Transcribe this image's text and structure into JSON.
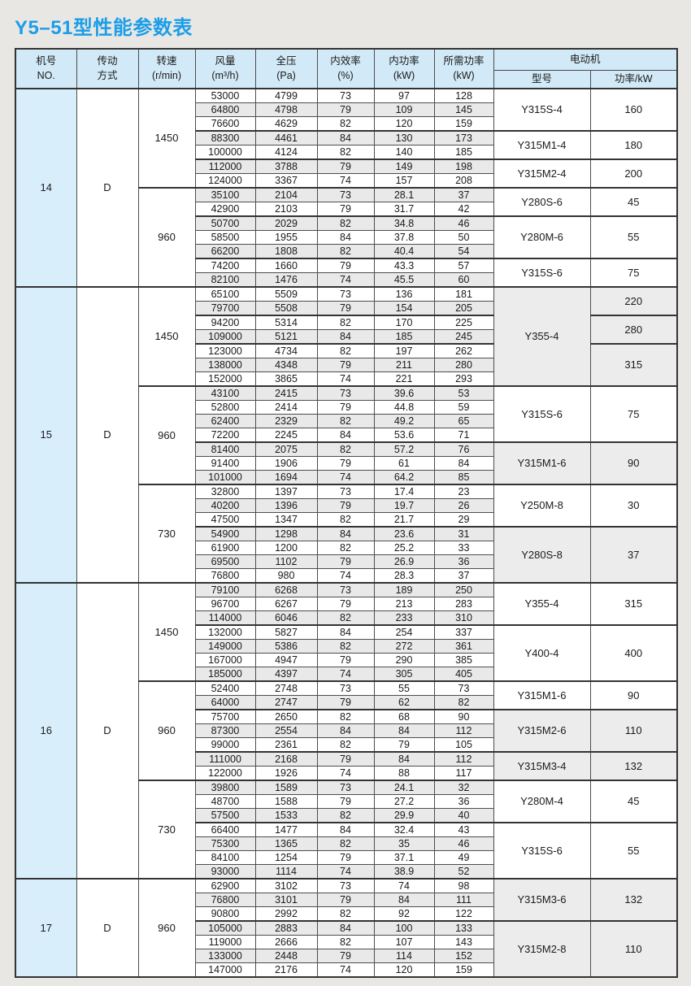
{
  "page": {
    "title": "Y5–51型性能参数表",
    "colors": {
      "accent": "#1b9ee8",
      "header_bg": "#d2e9f7",
      "machine_no_bg": "#d9eefb",
      "stripe_bg": "#e9e9e9",
      "shaded_cell_bg": "#ececec",
      "border": "#4d4d4d",
      "border_thick": "#333333",
      "page_bg": "#e9e7e4"
    }
  },
  "table": {
    "header": {
      "columns": [
        "机号\nNO.",
        "传动\n方式",
        "转速\n(r/min)",
        "风量\n(m³/h)",
        "全压\n(Pa)",
        "内效率\n(%)",
        "内功率\n(kW)",
        "所需功率\n(kW)"
      ],
      "motor_group_label": "电动机",
      "motor_sub_columns": [
        "型号",
        "功率/kW"
      ]
    },
    "sections": [
      {
        "no": "14",
        "drive": "D",
        "speed_groups": [
          {
            "speed": "1450",
            "rows": [
              [
                "53000",
                "4799",
                "73",
                "97",
                "128"
              ],
              [
                "64800",
                "4798",
                "79",
                "109",
                "145"
              ],
              [
                "76600",
                "4629",
                "82",
                "120",
                "159"
              ],
              [
                "88300",
                "4461",
                "84",
                "130",
                "173"
              ],
              [
                "100000",
                "4124",
                "82",
                "140",
                "185"
              ],
              [
                "112000",
                "3788",
                "79",
                "149",
                "198"
              ],
              [
                "124000",
                "3367",
                "74",
                "157",
                "208"
              ]
            ]
          },
          {
            "speed": "960",
            "rows": [
              [
                "35100",
                "2104",
                "73",
                "28.1",
                "37"
              ],
              [
                "42900",
                "2103",
                "79",
                "31.7",
                "42"
              ],
              [
                "50700",
                "2029",
                "82",
                "34.8",
                "46"
              ],
              [
                "58500",
                "1955",
                "84",
                "37.8",
                "50"
              ],
              [
                "66200",
                "1808",
                "82",
                "40.4",
                "54"
              ],
              [
                "74200",
                "1660",
                "79",
                "43.3",
                "57"
              ],
              [
                "82100",
                "1476",
                "74",
                "45.5",
                "60"
              ]
            ]
          }
        ],
        "model_groups": [
          {
            "model": "Y315S-4",
            "span": 3,
            "shaded": false
          },
          {
            "model": "Y315M1-4",
            "span": 2,
            "shaded": false
          },
          {
            "model": "Y315M2-4",
            "span": 2,
            "shaded": false
          },
          {
            "model": "Y280S-6",
            "span": 2,
            "shaded": false
          },
          {
            "model": "Y280M-6",
            "span": 3,
            "shaded": false
          },
          {
            "model": "Y315S-6",
            "span": 2,
            "shaded": false
          }
        ],
        "power_groups": [
          {
            "power": "160",
            "span": 3,
            "shaded": false
          },
          {
            "power": "180",
            "span": 2,
            "shaded": false
          },
          {
            "power": "200",
            "span": 2,
            "shaded": false
          },
          {
            "power": "45",
            "span": 2,
            "shaded": false
          },
          {
            "power": "55",
            "span": 3,
            "shaded": false
          },
          {
            "power": "75",
            "span": 2,
            "shaded": false
          }
        ]
      },
      {
        "no": "15",
        "drive": "D",
        "speed_groups": [
          {
            "speed": "1450",
            "rows": [
              [
                "65100",
                "5509",
                "73",
                "136",
                "181"
              ],
              [
                "79700",
                "5508",
                "79",
                "154",
                "205"
              ],
              [
                "94200",
                "5314",
                "82",
                "170",
                "225"
              ],
              [
                "109000",
                "5121",
                "84",
                "185",
                "245"
              ],
              [
                "123000",
                "4734",
                "82",
                "197",
                "262"
              ],
              [
                "138000",
                "4348",
                "79",
                "211",
                "280"
              ],
              [
                "152000",
                "3865",
                "74",
                "221",
                "293"
              ]
            ]
          },
          {
            "speed": "960",
            "rows": [
              [
                "43100",
                "2415",
                "73",
                "39.6",
                "53"
              ],
              [
                "52800",
                "2414",
                "79",
                "44.8",
                "59"
              ],
              [
                "62400",
                "2329",
                "82",
                "49.2",
                "65"
              ],
              [
                "72200",
                "2245",
                "84",
                "53.6",
                "71"
              ],
              [
                "81400",
                "2075",
                "82",
                "57.2",
                "76"
              ],
              [
                "91400",
                "1906",
                "79",
                "61",
                "84"
              ],
              [
                "101000",
                "1694",
                "74",
                "64.2",
                "85"
              ]
            ]
          },
          {
            "speed": "730",
            "rows": [
              [
                "32800",
                "1397",
                "73",
                "17.4",
                "23"
              ],
              [
                "40200",
                "1396",
                "79",
                "19.7",
                "26"
              ],
              [
                "47500",
                "1347",
                "82",
                "21.7",
                "29"
              ],
              [
                "54900",
                "1298",
                "84",
                "23.6",
                "31"
              ],
              [
                "61900",
                "1200",
                "82",
                "25.2",
                "33"
              ],
              [
                "69500",
                "1102",
                "79",
                "26.9",
                "36"
              ],
              [
                "76800",
                "980",
                "74",
                "28.3",
                "37"
              ]
            ]
          }
        ],
        "model_groups": [
          {
            "model": "Y355-4",
            "span": 7,
            "shaded": true
          },
          {
            "model": "Y315S-6",
            "span": 4,
            "shaded": false
          },
          {
            "model": "Y315M1-6",
            "span": 3,
            "shaded": true
          },
          {
            "model": "Y250M-8",
            "span": 3,
            "shaded": false
          },
          {
            "model": "Y280S-8",
            "span": 4,
            "shaded": true
          }
        ],
        "power_groups": [
          {
            "power": "220",
            "span": 2,
            "shaded": true
          },
          {
            "power": "280",
            "span": 2,
            "shaded": true
          },
          {
            "power": "315",
            "span": 3,
            "shaded": true
          },
          {
            "power": "75",
            "span": 4,
            "shaded": false
          },
          {
            "power": "90",
            "span": 3,
            "shaded": true
          },
          {
            "power": "30",
            "span": 3,
            "shaded": false
          },
          {
            "power": "37",
            "span": 4,
            "shaded": true
          }
        ]
      },
      {
        "no": "16",
        "drive": "D",
        "speed_groups": [
          {
            "speed": "1450",
            "rows": [
              [
                "79100",
                "6268",
                "73",
                "189",
                "250"
              ],
              [
                "96700",
                "6267",
                "79",
                "213",
                "283"
              ],
              [
                "114000",
                "6046",
                "82",
                "233",
                "310"
              ],
              [
                "132000",
                "5827",
                "84",
                "254",
                "337"
              ],
              [
                "149000",
                "5386",
                "82",
                "272",
                "361"
              ],
              [
                "167000",
                "4947",
                "79",
                "290",
                "385"
              ],
              [
                "185000",
                "4397",
                "74",
                "305",
                "405"
              ]
            ]
          },
          {
            "speed": "960",
            "rows": [
              [
                "52400",
                "2748",
                "73",
                "55",
                "73"
              ],
              [
                "64000",
                "2747",
                "79",
                "62",
                "82"
              ],
              [
                "75700",
                "2650",
                "82",
                "68",
                "90"
              ],
              [
                "87300",
                "2554",
                "84",
                "84",
                "112"
              ],
              [
                "99000",
                "2361",
                "82",
                "79",
                "105"
              ],
              [
                "111000",
                "2168",
                "79",
                "84",
                "112"
              ],
              [
                "122000",
                "1926",
                "74",
                "88",
                "117"
              ]
            ]
          },
          {
            "speed": "730",
            "rows": [
              [
                "39800",
                "1589",
                "73",
                "24.1",
                "32"
              ],
              [
                "48700",
                "1588",
                "79",
                "27.2",
                "36"
              ],
              [
                "57500",
                "1533",
                "82",
                "29.9",
                "40"
              ],
              [
                "66400",
                "1477",
                "84",
                "32.4",
                "43"
              ],
              [
                "75300",
                "1365",
                "82",
                "35",
                "46"
              ],
              [
                "84100",
                "1254",
                "79",
                "37.1",
                "49"
              ],
              [
                "93000",
                "1114",
                "74",
                "38.9",
                "52"
              ]
            ]
          }
        ],
        "model_groups": [
          {
            "model": "Y355-4",
            "span": 3,
            "shaded": false
          },
          {
            "model": "Y400-4",
            "span": 4,
            "shaded": false
          },
          {
            "model": "Y315M1-6",
            "span": 2,
            "shaded": false
          },
          {
            "model": "Y315M2-6",
            "span": 3,
            "shaded": true
          },
          {
            "model": "Y315M3-4",
            "span": 2,
            "shaded": true
          },
          {
            "model": "Y280M-4",
            "span": 3,
            "shaded": false
          },
          {
            "model": "Y315S-6",
            "span": 4,
            "shaded": false
          }
        ],
        "power_groups": [
          {
            "power": "315",
            "span": 3,
            "shaded": false
          },
          {
            "power": "400",
            "span": 4,
            "shaded": false
          },
          {
            "power": "90",
            "span": 2,
            "shaded": false
          },
          {
            "power": "110",
            "span": 3,
            "shaded": true
          },
          {
            "power": "132",
            "span": 2,
            "shaded": true
          },
          {
            "power": "45",
            "span": 3,
            "shaded": false
          },
          {
            "power": "55",
            "span": 4,
            "shaded": false
          }
        ]
      },
      {
        "no": "17",
        "drive": "D",
        "speed_groups": [
          {
            "speed": "960",
            "rows": [
              [
                "62900",
                "3102",
                "73",
                "74",
                "98"
              ],
              [
                "76800",
                "3101",
                "79",
                "84",
                "111"
              ],
              [
                "90800",
                "2992",
                "82",
                "92",
                "122"
              ],
              [
                "105000",
                "2883",
                "84",
                "100",
                "133"
              ],
              [
                "119000",
                "2666",
                "82",
                "107",
                "143"
              ],
              [
                "133000",
                "2448",
                "79",
                "114",
                "152"
              ],
              [
                "147000",
                "2176",
                "74",
                "120",
                "159"
              ]
            ]
          }
        ],
        "model_groups": [
          {
            "model": "Y315M3-6",
            "span": 3,
            "shaded": true
          },
          {
            "model": "Y315M2-8",
            "span": 4,
            "shaded": true
          }
        ],
        "power_groups": [
          {
            "power": "132",
            "span": 3,
            "shaded": true
          },
          {
            "power": "110",
            "span": 4,
            "shaded": true
          }
        ]
      }
    ]
  }
}
